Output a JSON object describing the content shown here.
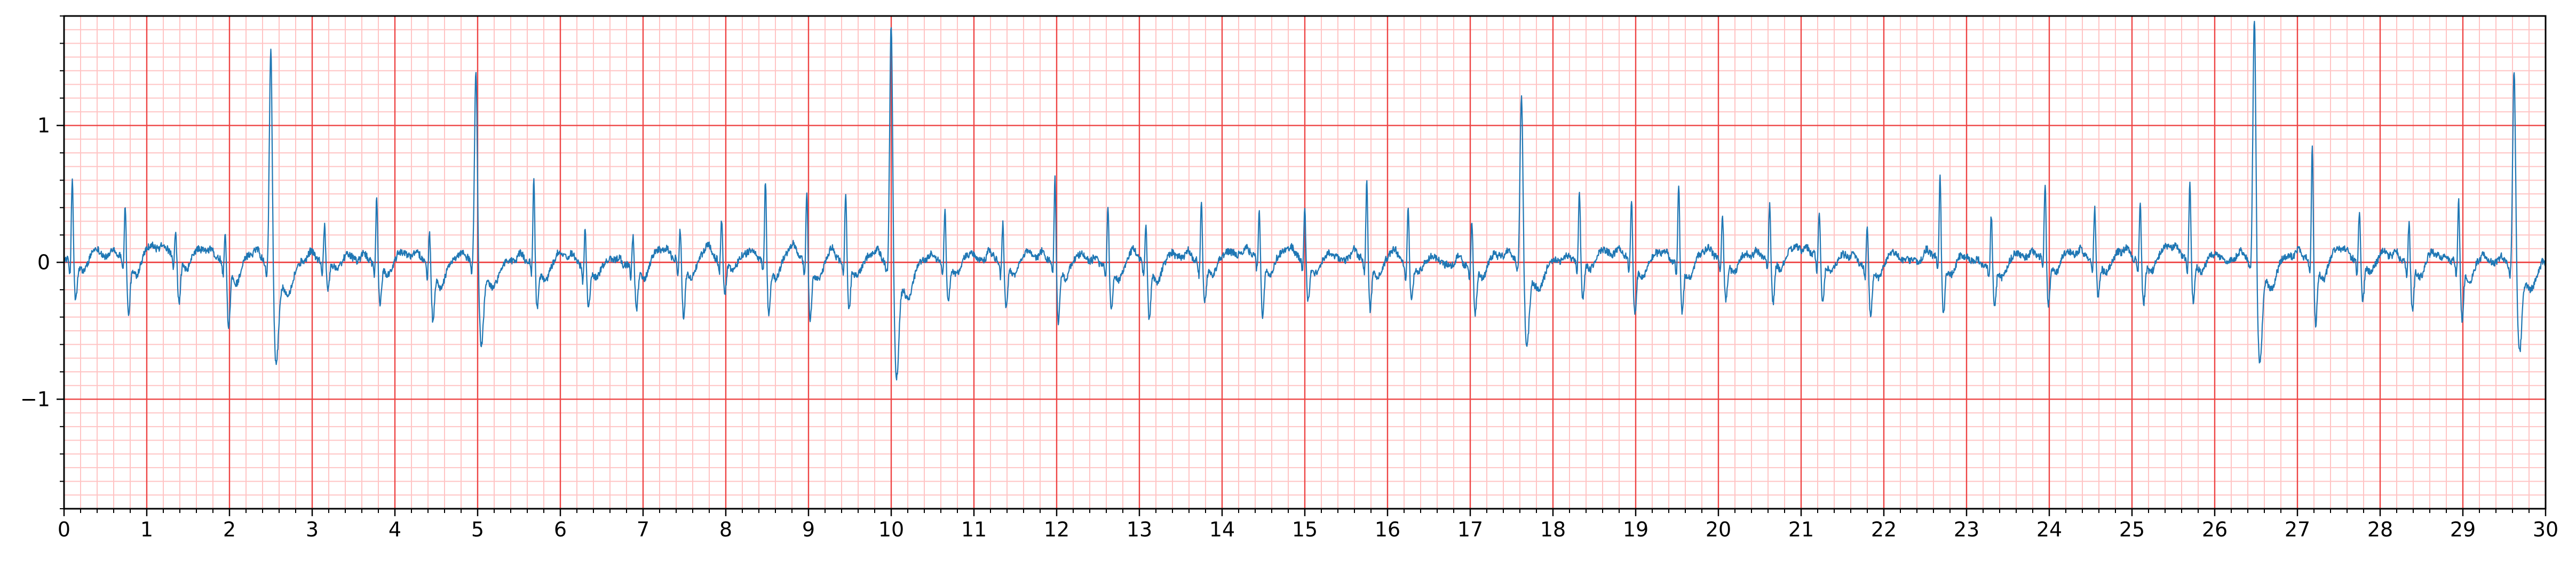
{
  "chart_data": {
    "type": "line",
    "title": "",
    "xlabel": "",
    "ylabel": "",
    "xlim": [
      0,
      30
    ],
    "ylim": [
      -1.8,
      1.8
    ],
    "x_ticks": [
      0,
      1,
      2,
      3,
      4,
      5,
      6,
      7,
      8,
      9,
      10,
      11,
      12,
      13,
      14,
      15,
      16,
      17,
      18,
      19,
      20,
      21,
      22,
      23,
      24,
      25,
      26,
      27,
      28,
      29,
      30
    ],
    "x_tick_labels": [
      "0",
      "1",
      "2",
      "3",
      "4",
      "5",
      "6",
      "7",
      "8",
      "9",
      "10",
      "11",
      "12",
      "13",
      "14",
      "15",
      "16",
      "17",
      "18",
      "19",
      "20",
      "21",
      "22",
      "23",
      "24",
      "25",
      "26",
      "27",
      "28",
      "29",
      "30"
    ],
    "y_ticks": [
      -1,
      0,
      1
    ],
    "y_tick_labels": [
      "−1",
      "0",
      "1"
    ],
    "grid": {
      "major": true,
      "minor": true,
      "major_x_step": 1,
      "major_y_step": 1,
      "minor_x_step": 0.2,
      "minor_y_step": 0.1,
      "major_color": "#ee4444",
      "minor_color": "#ffc4c4"
    },
    "legend": "none",
    "series_color": "#1f77b4",
    "beats": [
      {
        "t": 0.1,
        "r": 0.62,
        "s": -0.28
      },
      {
        "t": 0.74,
        "r": 0.4,
        "s": -0.4
      },
      {
        "t": 1.35,
        "r": 0.18,
        "s": -0.35
      },
      {
        "t": 1.95,
        "r": 0.22,
        "s": -0.48
      },
      {
        "t": 2.5,
        "r": 1.62,
        "s": -0.7,
        "wide": true
      },
      {
        "t": 3.15,
        "r": 0.28,
        "s": -0.22
      },
      {
        "t": 3.78,
        "r": 0.5,
        "s": -0.3
      },
      {
        "t": 4.42,
        "r": 0.25,
        "s": -0.4
      },
      {
        "t": 4.98,
        "r": 1.42,
        "s": -0.6,
        "wide": true
      },
      {
        "t": 5.68,
        "r": 0.62,
        "s": -0.32
      },
      {
        "t": 6.3,
        "r": 0.28,
        "s": -0.28
      },
      {
        "t": 6.88,
        "r": 0.22,
        "s": -0.33
      },
      {
        "t": 7.45,
        "r": 0.25,
        "s": -0.4
      },
      {
        "t": 7.95,
        "r": 0.3,
        "s": -0.25
      },
      {
        "t": 8.48,
        "r": 0.6,
        "s": -0.38
      },
      {
        "t": 8.98,
        "r": 0.55,
        "s": -0.4
      },
      {
        "t": 9.45,
        "r": 0.52,
        "s": -0.35
      },
      {
        "t": 10.0,
        "r": 1.8,
        "s": -0.82,
        "wide": true
      },
      {
        "t": 10.65,
        "r": 0.4,
        "s": -0.3
      },
      {
        "t": 11.35,
        "r": 0.3,
        "s": -0.35
      },
      {
        "t": 11.98,
        "r": 0.65,
        "s": -0.42
      },
      {
        "t": 12.62,
        "r": 0.45,
        "s": -0.33
      },
      {
        "t": 13.08,
        "r": 0.3,
        "s": -0.4
      },
      {
        "t": 13.75,
        "r": 0.45,
        "s": -0.28
      },
      {
        "t": 14.45,
        "r": 0.35,
        "s": -0.4
      },
      {
        "t": 15.0,
        "r": 0.38,
        "s": -0.3
      },
      {
        "t": 15.75,
        "r": 0.62,
        "s": -0.35
      },
      {
        "t": 16.25,
        "r": 0.45,
        "s": -0.25
      },
      {
        "t": 17.02,
        "r": 0.32,
        "s": -0.35
      },
      {
        "t": 17.62,
        "r": 1.25,
        "s": -0.6,
        "wide": true
      },
      {
        "t": 18.32,
        "r": 0.47,
        "s": -0.3
      },
      {
        "t": 18.95,
        "r": 0.47,
        "s": -0.38
      },
      {
        "t": 19.52,
        "r": 0.58,
        "s": -0.35
      },
      {
        "t": 20.05,
        "r": 0.35,
        "s": -0.28
      },
      {
        "t": 20.62,
        "r": 0.4,
        "s": -0.33
      },
      {
        "t": 21.22,
        "r": 0.35,
        "s": -0.3
      },
      {
        "t": 21.8,
        "r": 0.32,
        "s": -0.35
      },
      {
        "t": 22.68,
        "r": 0.62,
        "s": -0.38
      },
      {
        "t": 23.3,
        "r": 0.38,
        "s": -0.3
      },
      {
        "t": 23.95,
        "r": 0.55,
        "s": -0.35
      },
      {
        "t": 24.55,
        "r": 0.4,
        "s": -0.28
      },
      {
        "t": 25.1,
        "r": 0.45,
        "s": -0.32
      },
      {
        "t": 25.7,
        "r": 0.58,
        "s": -0.3
      },
      {
        "t": 26.48,
        "r": 1.8,
        "s": -0.75,
        "wide": true
      },
      {
        "t": 27.18,
        "r": 0.88,
        "s": -0.45
      },
      {
        "t": 27.75,
        "r": 0.38,
        "s": -0.3
      },
      {
        "t": 28.35,
        "r": 0.32,
        "s": -0.35
      },
      {
        "t": 28.95,
        "r": 0.48,
        "s": -0.4
      },
      {
        "t": 29.62,
        "r": 1.45,
        "s": -0.62,
        "wide": true
      }
    ]
  }
}
